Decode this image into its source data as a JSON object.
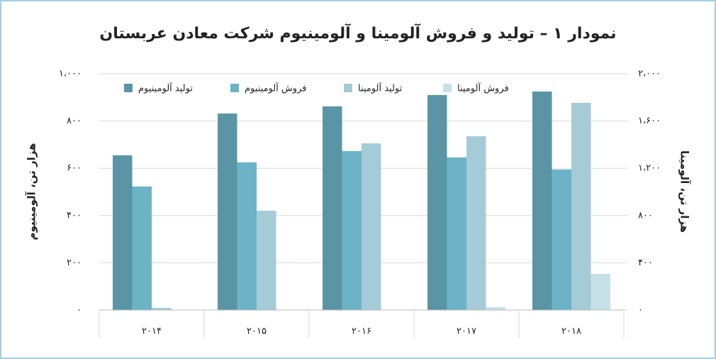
{
  "chart_data": {
    "type": "bar",
    "title": "نمودار ۱ – تولید و فروش آلومینا و آلومینیوم شرکت معادن عربستان",
    "y_label": "هزار تن، آلومینیوم",
    "y2_label": "هزار تن، آلومینا",
    "categories": [
      "۲۰۱۴",
      "۲۰۱۵",
      "۲۰۱۶",
      "۲۰۱۷",
      "۲۰۱۸"
    ],
    "series": [
      {
        "name": "تولید آلومینیوم",
        "color": "#5a95a5",
        "values": [
          655,
          832,
          862,
          910,
          925
        ]
      },
      {
        "name": "فروش آلومینیوم",
        "color": "#6db3c8",
        "values": [
          523,
          625,
          673,
          646,
          595
        ]
      },
      {
        "name": "تولید آلومینا",
        "color": "#a5cbd6",
        "axis": "y2",
        "values": [
          18,
          841,
          1411,
          1471,
          1754
        ]
      },
      {
        "name": "فروش آلومینا",
        "color": "#c6e1e8",
        "axis": "y2",
        "values": [
          0,
          0,
          0,
          24,
          306
        ]
      }
    ],
    "ylim": [
      0,
      1000
    ],
    "yticks": [
      {
        "value": 0,
        "label": "۰"
      },
      {
        "value": 200,
        "label": "۲۰۰"
      },
      {
        "value": 400,
        "label": "۴۰۰"
      },
      {
        "value": 600,
        "label": "۶۰۰"
      },
      {
        "value": 800,
        "label": "۸۰۰"
      },
      {
        "value": 1000,
        "label": "۱،۰۰۰"
      }
    ],
    "y2lim": [
      0,
      2000
    ],
    "y2ticks": [
      {
        "value": 0,
        "label": "۰"
      },
      {
        "value": 400,
        "label": "۴۰۰"
      },
      {
        "value": 800,
        "label": "۸۰۰"
      },
      {
        "value": 1200,
        "label": "۱،۲۰۰"
      },
      {
        "value": 1600,
        "label": "۱،۶۰۰"
      },
      {
        "value": 2000,
        "label": "۲،۰۰۰"
      }
    ],
    "grid": true
  }
}
